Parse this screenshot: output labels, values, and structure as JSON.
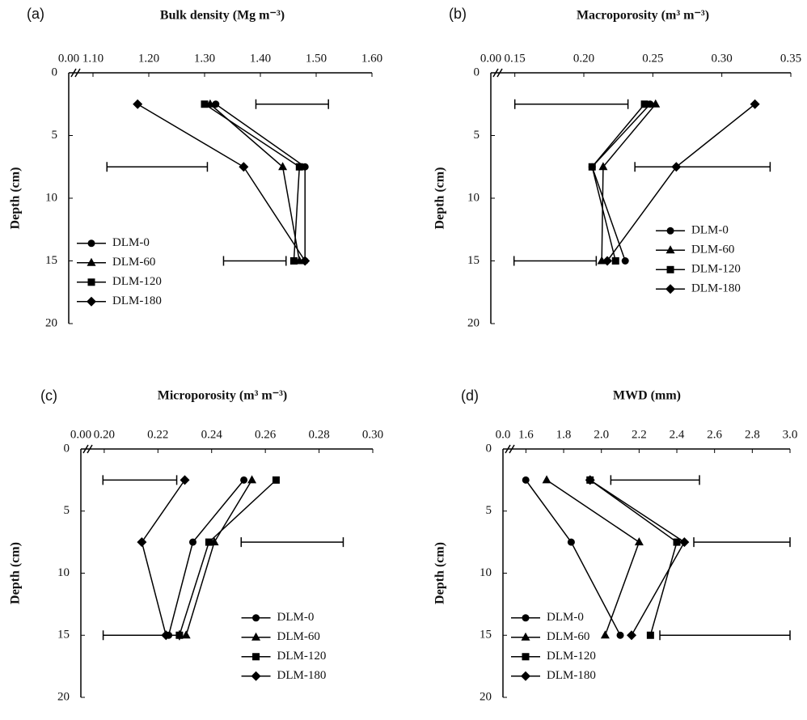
{
  "chart_data": [
    {
      "type": "line",
      "panel_label": "(a)",
      "title": "Bulk density (Mg m⁻³)",
      "ylabel": "Depth (cm)",
      "depths": [
        2.5,
        7.5,
        15
      ],
      "series": [
        {
          "name": "DLM-0",
          "color": "#000000",
          "marker": "circle",
          "values": [
            1.32,
            1.48,
            1.48
          ]
        },
        {
          "name": "DLM-60",
          "color": "#000000",
          "marker": "triangle",
          "values": [
            1.31,
            1.44,
            1.47
          ]
        },
        {
          "name": "DLM-120",
          "color": "#000000",
          "marker": "square",
          "values": [
            1.3,
            1.47,
            1.46
          ]
        },
        {
          "name": "DLM-180",
          "color": "#000000",
          "marker": "diamond",
          "values": [
            1.18,
            1.37,
            1.48
          ]
        }
      ],
      "lsd_bars": {
        "centers": [
          1.457,
          1.215,
          1.39
        ],
        "errors": [
          0.065,
          0.09,
          0.056
        ]
      },
      "xlim": [
        0,
        1.6
      ],
      "xbreak": [
        0,
        1.1
      ],
      "xticks": [
        {
          "value": 0,
          "label": "0.00"
        },
        {
          "value": 1.1,
          "label": "1.10"
        },
        {
          "value": 1.2,
          "label": "1.20"
        },
        {
          "value": 1.3,
          "label": "1.30"
        },
        {
          "value": 1.4,
          "label": "1.40"
        },
        {
          "value": 1.5,
          "label": "1.50"
        },
        {
          "value": 1.6,
          "label": "1.60"
        }
      ],
      "ylim": [
        0,
        20
      ],
      "yticks": [
        0,
        5,
        10,
        15,
        20
      ],
      "y_inverted": true,
      "legend": "lower left"
    },
    {
      "type": "line",
      "panel_label": "(b)",
      "title": "Macroporosity (m³ m⁻³)",
      "ylabel": "Depth (cm)",
      "depths": [
        2.5,
        7.5,
        15
      ],
      "series": [
        {
          "name": "DLM-0",
          "color": "#000000",
          "marker": "circle",
          "values": [
            0.248,
            0.206,
            0.23
          ]
        },
        {
          "name": "DLM-60",
          "color": "#000000",
          "marker": "triangle",
          "values": [
            0.252,
            0.214,
            0.213
          ]
        },
        {
          "name": "DLM-120",
          "color": "#000000",
          "marker": "square",
          "values": [
            0.244,
            0.206,
            0.223
          ]
        },
        {
          "name": "DLM-180",
          "color": "#000000",
          "marker": "diamond",
          "values": [
            0.324,
            0.267,
            0.217
          ]
        }
      ],
      "lsd_bars": {
        "centers": [
          0.191,
          0.286,
          0.177
        ],
        "errors": [
          0.041,
          0.049,
          0.032
        ]
      },
      "xlim": [
        0,
        0.35
      ],
      "xbreak": [
        0,
        0.15
      ],
      "xticks": [
        {
          "value": 0,
          "label": "0.00"
        },
        0.15,
        {
          "value": 0.2,
          "label": "0.20"
        },
        0.25,
        {
          "value": 0.3,
          "label": "0.30"
        },
        0.35
      ],
      "ylim": [
        0,
        20
      ],
      "yticks": [
        0,
        5,
        10,
        15,
        20
      ],
      "y_inverted": true,
      "legend": "center right"
    },
    {
      "type": "line",
      "panel_label": "(c)",
      "title": "Microporosity (m³ m⁻³)",
      "ylabel": "Depth (cm)",
      "depths": [
        2.5,
        7.5,
        15
      ],
      "series": [
        {
          "name": "DLM-0",
          "color": "#000000",
          "marker": "circle",
          "values": [
            0.252,
            0.233,
            0.224
          ]
        },
        {
          "name": "DLM-60",
          "color": "#000000",
          "marker": "triangle",
          "values": [
            0.255,
            0.241,
            0.2305
          ]
        },
        {
          "name": "DLM-120",
          "color": "#000000",
          "marker": "square",
          "values": [
            0.264,
            0.239,
            0.228
          ]
        },
        {
          "name": "DLM-180",
          "color": "#000000",
          "marker": "diamond",
          "values": [
            0.23,
            0.214,
            0.223
          ]
        }
      ],
      "lsd_bars": {
        "centers": [
          0.208,
          0.27,
          0.2095
        ],
        "errors": [
          0.019,
          0.019,
          0.0185
        ]
      },
      "xlim": [
        0,
        0.3
      ],
      "xbreak": [
        0,
        0.2
      ],
      "xticks": [
        {
          "value": 0,
          "label": "0.00"
        },
        {
          "value": 0.2,
          "label": "0.20"
        },
        0.22,
        0.24,
        0.26,
        0.28,
        {
          "value": 0.3,
          "label": "0.30"
        }
      ],
      "ylim": [
        0,
        20
      ],
      "yticks": [
        0,
        5,
        10,
        15,
        20
      ],
      "y_inverted": true,
      "legend": "lower right"
    },
    {
      "type": "line",
      "panel_label": "(d)",
      "title": "MWD (mm)",
      "ylabel": "Depth (cm)",
      "depths": [
        2.5,
        7.5,
        15
      ],
      "series": [
        {
          "name": "DLM-0",
          "color": "#000000",
          "marker": "circle",
          "values": [
            1.59,
            1.84,
            2.1
          ]
        },
        {
          "name": "DLM-60",
          "color": "#000000",
          "marker": "triangle",
          "values": [
            1.71,
            2.2,
            2.02
          ]
        },
        {
          "name": "DLM-120",
          "color": "#000000",
          "marker": "square",
          "values": [
            1.94,
            2.4,
            2.26
          ]
        },
        {
          "name": "DLM-180",
          "color": "#000000",
          "marker": "diamond",
          "values": [
            1.94,
            2.44,
            2.16
          ]
        }
      ],
      "lsd_bars": {
        "centers": [
          2.285,
          2.745,
          2.655
        ],
        "errors": [
          0.235,
          0.255,
          0.345
        ]
      },
      "xlim": [
        0,
        3
      ],
      "xbreak": [
        0,
        1.6
      ],
      "xticks": [
        {
          "value": 0,
          "label": "0.0"
        },
        1.6,
        1.8,
        {
          "value": 2,
          "label": "2.0"
        },
        2.2,
        2.4,
        2.6,
        2.8,
        {
          "value": 3,
          "label": "3.0"
        }
      ],
      "ylim": [
        0,
        20
      ],
      "yticks": [
        0,
        5,
        10,
        15,
        20
      ],
      "y_inverted": true,
      "legend": "lower left"
    }
  ]
}
